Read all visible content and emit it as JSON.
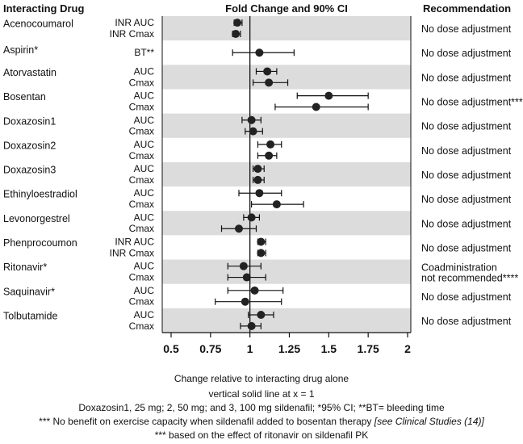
{
  "chart_data": {
    "type": "forest",
    "title": "Fold Change and 90% CI",
    "left_header": "Interacting Drug",
    "right_header": "Recommendation",
    "xlabel": "Change relative to interacting drug alone",
    "xlim": [
      0.5,
      2
    ],
    "xticks": [
      "0.5",
      "0.75",
      "1",
      "1.25",
      "1.5",
      "1.75",
      "2"
    ],
    "reference_line": 1,
    "groups": [
      {
        "drug": "Acenocoumarol",
        "recommendation": "No dose adjustment",
        "shaded": true,
        "params": [
          {
            "name": "INR AUC",
            "est": 0.92,
            "lo": 0.9,
            "hi": 0.95
          },
          {
            "name": "INR Cmax",
            "est": 0.91,
            "lo": 0.89,
            "hi": 0.94
          }
        ]
      },
      {
        "drug": "Aspirin*",
        "recommendation": "No dose adjustment",
        "shaded": false,
        "params": [
          {
            "name": "BT**",
            "est": 1.06,
            "lo": 0.89,
            "hi": 1.28
          }
        ]
      },
      {
        "drug": "Atorvastatin",
        "recommendation": "No dose adjustment",
        "shaded": true,
        "params": [
          {
            "name": "AUC",
            "est": 1.11,
            "lo": 1.04,
            "hi": 1.17
          },
          {
            "name": "Cmax",
            "est": 1.12,
            "lo": 1.02,
            "hi": 1.24
          }
        ]
      },
      {
        "drug": "Bosentan",
        "recommendation": "No dose adjustment***",
        "shaded": false,
        "params": [
          {
            "name": "AUC",
            "est": 1.5,
            "lo": 1.3,
            "hi": 1.75
          },
          {
            "name": "Cmax",
            "est": 1.42,
            "lo": 1.16,
            "hi": 1.75
          }
        ]
      },
      {
        "drug": "Doxazosin1",
        "recommendation": "No dose adjustment",
        "shaded": true,
        "params": [
          {
            "name": "AUC",
            "est": 1.01,
            "lo": 0.95,
            "hi": 1.07
          },
          {
            "name": "Cmax",
            "est": 1.02,
            "lo": 0.97,
            "hi": 1.08
          }
        ]
      },
      {
        "drug": "Doxazosin2",
        "recommendation": "No dose adjustment",
        "shaded": false,
        "params": [
          {
            "name": "AUC",
            "est": 1.13,
            "lo": 1.05,
            "hi": 1.2
          },
          {
            "name": "Cmax",
            "est": 1.12,
            "lo": 1.05,
            "hi": 1.17
          }
        ]
      },
      {
        "drug": "Doxazosin3",
        "recommendation": "No dose adjustment",
        "shaded": true,
        "params": [
          {
            "name": "AUC",
            "est": 1.05,
            "lo": 1.02,
            "hi": 1.09
          },
          {
            "name": "Cmax",
            "est": 1.05,
            "lo": 1.02,
            "hi": 1.09
          }
        ]
      },
      {
        "drug": "Ethinyloestradiol",
        "recommendation": "No dose adjustment",
        "shaded": false,
        "params": [
          {
            "name": "AUC",
            "est": 1.06,
            "lo": 0.93,
            "hi": 1.2
          },
          {
            "name": "Cmax",
            "est": 1.17,
            "lo": 1.01,
            "hi": 1.34
          }
        ]
      },
      {
        "drug": "Levonorgestrel",
        "recommendation": "No dose adjustment",
        "shaded": true,
        "params": [
          {
            "name": "AUC",
            "est": 1.01,
            "lo": 0.96,
            "hi": 1.06
          },
          {
            "name": "Cmax",
            "est": 0.93,
            "lo": 0.82,
            "hi": 1.04
          }
        ]
      },
      {
        "drug": "Phenprocoumon",
        "recommendation": "No dose adjustment",
        "shaded": false,
        "params": [
          {
            "name": "INR AUC",
            "est": 1.07,
            "lo": 1.05,
            "hi": 1.1
          },
          {
            "name": "INR Cmax",
            "est": 1.07,
            "lo": 1.05,
            "hi": 1.1
          }
        ]
      },
      {
        "drug": "Ritonavir*",
        "recommendation": "Coadministration not recommended****",
        "recommendation_lines": [
          "Coadministration",
          "not recommended****"
        ],
        "shaded": true,
        "params": [
          {
            "name": "AUC",
            "est": 0.96,
            "lo": 0.86,
            "hi": 1.07
          },
          {
            "name": "Cmax",
            "est": 0.98,
            "lo": 0.86,
            "hi": 1.1
          }
        ]
      },
      {
        "drug": "Saquinavir*",
        "recommendation": "No dose adjustment",
        "shaded": false,
        "params": [
          {
            "name": "AUC",
            "est": 1.03,
            "lo": 0.86,
            "hi": 1.21
          },
          {
            "name": "Cmax",
            "est": 0.97,
            "lo": 0.78,
            "hi": 1.2
          }
        ]
      },
      {
        "drug": "Tolbutamide",
        "recommendation": "No dose adjustment",
        "shaded": true,
        "params": [
          {
            "name": "AUC",
            "est": 1.07,
            "lo": 0.99,
            "hi": 1.15
          },
          {
            "name": "Cmax",
            "est": 1.01,
            "lo": 0.94,
            "hi": 1.07
          }
        ]
      }
    ]
  },
  "footer": {
    "line1": "vertical solid line at x = 1",
    "line2": "Doxazosin1, 25 mg; 2, 50 mg; and 3, 100 mg sildenafil; *95% CI; **BT= bleeding time",
    "line3_main": "*** No benefit on exercise capacity when sildenafil added to bosentan therapy ",
    "line3_italic": "[see Clinical Studies (14)]",
    "line4": "*** based on the effect of ritonavir on sildenafil PK"
  }
}
